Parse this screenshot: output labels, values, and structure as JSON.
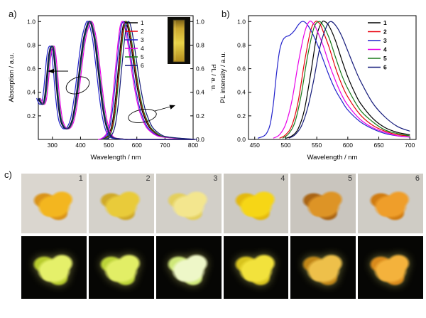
{
  "figure": {
    "panel_a_label": "a)",
    "panel_b_label": "b)",
    "panel_c_label": "c)"
  },
  "chart_data": [
    {
      "id": "panel_a",
      "type": "line",
      "title": "",
      "xlabel": "Wavelength / nm",
      "ylabel_left": "Absorption / a.u.",
      "ylabel_right": "PL / a. u.",
      "xlim": [
        250,
        800
      ],
      "ylim": [
        0,
        1.05
      ],
      "x_ticks": [
        300,
        400,
        500,
        600,
        700,
        800
      ],
      "y_ticks_left": [
        0.2,
        0.4,
        0.6,
        0.8,
        1.0
      ],
      "y_ticks_right": [
        0.0,
        0.2,
        0.4,
        0.6,
        0.8,
        1.0
      ],
      "legend_position": "top-right-inside",
      "inset": "cuvette-solution-photo",
      "annotations": [
        "absorption-left-axis-arrow-ellipse",
        "pl-right-axis-arrow-ellipse"
      ],
      "series": [
        {
          "name": "1",
          "color": "#000000",
          "abs_shift": 0,
          "pl_shift": 2
        },
        {
          "name": "2",
          "color": "#e8000d",
          "abs_shift": 3,
          "pl_shift": 5
        },
        {
          "name": "3",
          "color": "#2222cc",
          "abs_shift": -6,
          "pl_shift": -4
        },
        {
          "name": "4",
          "color": "#e800e8",
          "abs_shift": 8,
          "pl_shift": -8
        },
        {
          "name": "5",
          "color": "#1a7a1a",
          "abs_shift": 4,
          "pl_shift": 7
        },
        {
          "name": "6",
          "color": "#141a7a",
          "abs_shift": 2,
          "pl_shift": 14
        }
      ],
      "absorption_base": [
        [
          250,
          0.35
        ],
        [
          255,
          0.32
        ],
        [
          260,
          0.3
        ],
        [
          265,
          0.3
        ],
        [
          270,
          0.33
        ],
        [
          275,
          0.42
        ],
        [
          280,
          0.55
        ],
        [
          285,
          0.68
        ],
        [
          290,
          0.76
        ],
        [
          295,
          0.79
        ],
        [
          300,
          0.78
        ],
        [
          305,
          0.7
        ],
        [
          310,
          0.57
        ],
        [
          315,
          0.42
        ],
        [
          320,
          0.3
        ],
        [
          325,
          0.21
        ],
        [
          330,
          0.15
        ],
        [
          340,
          0.1
        ],
        [
          350,
          0.09
        ],
        [
          360,
          0.11
        ],
        [
          370,
          0.17
        ],
        [
          380,
          0.3
        ],
        [
          390,
          0.48
        ],
        [
          400,
          0.68
        ],
        [
          410,
          0.85
        ],
        [
          420,
          0.95
        ],
        [
          428,
          1.0
        ],
        [
          435,
          0.99
        ],
        [
          440,
          0.95
        ],
        [
          450,
          0.83
        ],
        [
          460,
          0.63
        ],
        [
          470,
          0.42
        ],
        [
          480,
          0.24
        ],
        [
          490,
          0.12
        ],
        [
          500,
          0.05
        ],
        [
          510,
          0.02
        ],
        [
          520,
          0.01
        ],
        [
          540,
          0.005
        ],
        [
          560,
          0
        ],
        [
          600,
          0
        ],
        [
          700,
          0
        ],
        [
          800,
          0
        ]
      ],
      "pl_base": [
        [
          470,
          0
        ],
        [
          480,
          0.005
        ],
        [
          490,
          0.02
        ],
        [
          500,
          0.05
        ],
        [
          510,
          0.13
        ],
        [
          520,
          0.3
        ],
        [
          530,
          0.55
        ],
        [
          540,
          0.8
        ],
        [
          548,
          0.95
        ],
        [
          555,
          1.0
        ],
        [
          562,
          0.98
        ],
        [
          570,
          0.9
        ],
        [
          580,
          0.75
        ],
        [
          590,
          0.58
        ],
        [
          600,
          0.43
        ],
        [
          610,
          0.31
        ],
        [
          620,
          0.22
        ],
        [
          640,
          0.11
        ],
        [
          660,
          0.06
        ],
        [
          680,
          0.03
        ],
        [
          700,
          0.02
        ],
        [
          740,
          0.01
        ],
        [
          800,
          0
        ]
      ]
    },
    {
      "id": "panel_b",
      "type": "line",
      "title": "",
      "xlabel": "Wavelength / nm",
      "ylabel": "PL intensity / a.u.",
      "xlim": [
        440,
        710
      ],
      "ylim": [
        0,
        1.05
      ],
      "x_ticks": [
        450,
        500,
        550,
        600,
        650,
        700
      ],
      "y_ticks": [
        0.0,
        0.2,
        0.4,
        0.6,
        0.8,
        1.0
      ],
      "legend_position": "top-right-inside",
      "series": [
        {
          "name": "1",
          "color": "#000000",
          "points": [
            [
              500,
              0.01
            ],
            [
              510,
              0.03
            ],
            [
              520,
              0.09
            ],
            [
              530,
              0.25
            ],
            [
              540,
              0.55
            ],
            [
              550,
              0.88
            ],
            [
              558,
              0.99
            ],
            [
              563,
              1.0
            ],
            [
              570,
              0.96
            ],
            [
              580,
              0.84
            ],
            [
              590,
              0.68
            ],
            [
              600,
              0.53
            ],
            [
              610,
              0.41
            ],
            [
              620,
              0.31
            ],
            [
              640,
              0.18
            ],
            [
              660,
              0.1
            ],
            [
              680,
              0.06
            ],
            [
              700,
              0.04
            ]
          ]
        },
        {
          "name": "2",
          "color": "#e8000d",
          "points": [
            [
              490,
              0.01
            ],
            [
              500,
              0.04
            ],
            [
              510,
              0.12
            ],
            [
              520,
              0.32
            ],
            [
              530,
              0.65
            ],
            [
              540,
              0.92
            ],
            [
              548,
              1.0
            ],
            [
              555,
              0.98
            ],
            [
              560,
              0.92
            ],
            [
              570,
              0.78
            ],
            [
              580,
              0.61
            ],
            [
              590,
              0.47
            ],
            [
              600,
              0.36
            ],
            [
              620,
              0.21
            ],
            [
              640,
              0.12
            ],
            [
              660,
              0.07
            ],
            [
              680,
              0.04
            ],
            [
              700,
              0.03
            ]
          ]
        },
        {
          "name": "3",
          "color": "#2222cc",
          "points": [
            [
              455,
              0.01
            ],
            [
              465,
              0.03
            ],
            [
              470,
              0.06
            ],
            [
              475,
              0.13
            ],
            [
              480,
              0.3
            ],
            [
              485,
              0.55
            ],
            [
              490,
              0.75
            ],
            [
              495,
              0.84
            ],
            [
              500,
              0.87
            ],
            [
              505,
              0.88
            ],
            [
              510,
              0.9
            ],
            [
              515,
              0.93
            ],
            [
              520,
              0.97
            ],
            [
              526,
              1.0
            ],
            [
              532,
              0.99
            ],
            [
              540,
              0.93
            ],
            [
              550,
              0.82
            ],
            [
              560,
              0.68
            ],
            [
              570,
              0.54
            ],
            [
              580,
              0.42
            ],
            [
              590,
              0.33
            ],
            [
              600,
              0.25
            ],
            [
              620,
              0.15
            ],
            [
              640,
              0.09
            ],
            [
              660,
              0.05
            ],
            [
              680,
              0.03
            ],
            [
              700,
              0.02
            ]
          ]
        },
        {
          "name": "4",
          "color": "#e800e8",
          "points": [
            [
              480,
              0.01
            ],
            [
              490,
              0.04
            ],
            [
              500,
              0.13
            ],
            [
              510,
              0.33
            ],
            [
              520,
              0.64
            ],
            [
              530,
              0.9
            ],
            [
              538,
              1.0
            ],
            [
              545,
              0.98
            ],
            [
              550,
              0.93
            ],
            [
              560,
              0.8
            ],
            [
              570,
              0.64
            ],
            [
              580,
              0.5
            ],
            [
              590,
              0.38
            ],
            [
              600,
              0.29
            ],
            [
              620,
              0.17
            ],
            [
              640,
              0.1
            ],
            [
              660,
              0.06
            ],
            [
              680,
              0.03
            ],
            [
              700,
              0.02
            ]
          ]
        },
        {
          "name": "5",
          "color": "#1a7a1a",
          "points": [
            [
              495,
              0.01
            ],
            [
              505,
              0.05
            ],
            [
              515,
              0.15
            ],
            [
              525,
              0.38
            ],
            [
              535,
              0.7
            ],
            [
              545,
              0.94
            ],
            [
              553,
              1.0
            ],
            [
              560,
              0.97
            ],
            [
              570,
              0.86
            ],
            [
              580,
              0.7
            ],
            [
              590,
              0.55
            ],
            [
              600,
              0.43
            ],
            [
              620,
              0.25
            ],
            [
              640,
              0.15
            ],
            [
              660,
              0.08
            ],
            [
              680,
              0.05
            ],
            [
              700,
              0.03
            ]
          ]
        },
        {
          "name": "6",
          "color": "#141a7a",
          "points": [
            [
              505,
              0.01
            ],
            [
              515,
              0.04
            ],
            [
              525,
              0.11
            ],
            [
              535,
              0.26
            ],
            [
              545,
              0.5
            ],
            [
              555,
              0.78
            ],
            [
              565,
              0.95
            ],
            [
              572,
              1.0
            ],
            [
              580,
              0.97
            ],
            [
              590,
              0.88
            ],
            [
              600,
              0.75
            ],
            [
              610,
              0.62
            ],
            [
              620,
              0.5
            ],
            [
              640,
              0.31
            ],
            [
              660,
              0.19
            ],
            [
              680,
              0.11
            ],
            [
              700,
              0.07
            ]
          ]
        }
      ]
    }
  ],
  "panel_c": {
    "description": "powder samples 1-6, top row daylight, bottom row UV illumination",
    "uv_background": "#060604",
    "samples": [
      {
        "num": "1",
        "day_bg": "#dad6cf",
        "day_colors": [
          "#f3b61f",
          "#d9931a"
        ],
        "uv_colors": [
          "#e5f06a",
          "#b8cc2e"
        ]
      },
      {
        "num": "2",
        "day_bg": "#d4d1ca",
        "day_colors": [
          "#e9cb3a",
          "#cfa92a"
        ],
        "uv_colors": [
          "#e2ee66",
          "#bcd338"
        ]
      },
      {
        "num": "3",
        "day_bg": "#d2cfc8",
        "day_colors": [
          "#f3e68e",
          "#e3cf5e"
        ],
        "uv_colors": [
          "#eef7c8",
          "#cfe87a"
        ]
      },
      {
        "num": "4",
        "day_bg": "#ccc9c2",
        "day_colors": [
          "#f6d616",
          "#e3b90e"
        ],
        "uv_colors": [
          "#f2e23c",
          "#d8c41e"
        ]
      },
      {
        "num": "5",
        "day_bg": "#c9c5be",
        "day_colors": [
          "#dd9426",
          "#a96414"
        ],
        "uv_colors": [
          "#eec04a",
          "#c08618"
        ]
      },
      {
        "num": "6",
        "day_bg": "#cfccc5",
        "day_colors": [
          "#ef9e2a",
          "#d07c12"
        ],
        "uv_colors": [
          "#f4b23c",
          "#d98a1c"
        ]
      }
    ]
  }
}
